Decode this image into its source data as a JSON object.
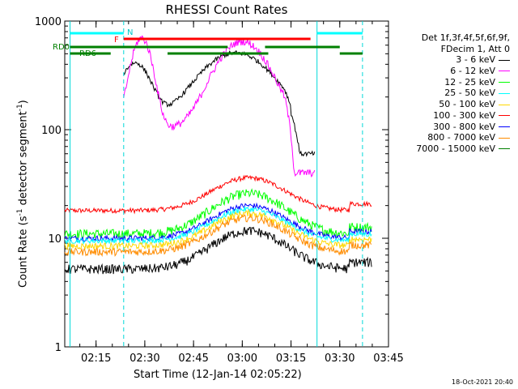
{
  "chart_data": {
    "type": "line",
    "title": "RHESSI Count Rates",
    "xlabel": "Start Time (12-Jan-14 02:05:22)",
    "ylabel": "Count Rate (s",
    "ylabel_sup": "-1",
    "ylabel_tail": " detector segment",
    "ylabel_sup2": "-1",
    "ylabel_end": ")",
    "y_scale": "log",
    "ylim": [
      1,
      1000
    ],
    "xlim": [
      "02:05:22",
      "03:45:00"
    ],
    "x_ticks": [
      "02:15",
      "02:30",
      "02:45",
      "03:00",
      "03:15",
      "03:30",
      "03:45"
    ],
    "y_ticks": [
      "1",
      "10",
      "100",
      "1000"
    ],
    "grid": false,
    "legend_position": "right",
    "legend_header": [
      "Det 1f,3f,4f,5f,6f,9f,",
      "FDecim 1, Att 0"
    ],
    "series": [
      {
        "name": "3 - 6 keV",
        "color": "#000000"
      },
      {
        "name": "6 - 12 keV",
        "color": "#ff00ff"
      },
      {
        "name": "12 - 25 keV",
        "color": "#00ff00"
      },
      {
        "name": "25 - 50 keV",
        "color": "#00ffff"
      },
      {
        "name": "50 - 100 keV",
        "color": "#ffd700"
      },
      {
        "name": "100 - 300 keV",
        "color": "#ff0000"
      },
      {
        "name": "300 - 800 keV",
        "color": "#0000ff"
      },
      {
        "name": "800 - 7000 keV",
        "color": "#ff8c00"
      },
      {
        "name": "7000 - 15000 keV",
        "color": "#008000"
      }
    ],
    "annotations": {
      "N": "N",
      "F": "F",
      "RD0": "RD0",
      "RD6": "RD6"
    }
  },
  "timestamp": "18-Oct-2021 20:40"
}
